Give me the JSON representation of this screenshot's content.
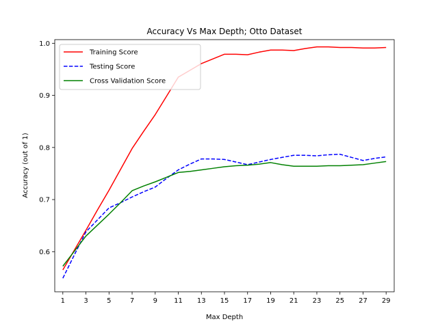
{
  "chart_data": {
    "type": "line",
    "title": "Accuracy Vs Max Depth; Otto Dataset",
    "xlabel": "Max Depth",
    "ylabel": "Accuracy (out of 1)",
    "x": [
      1,
      2,
      3,
      4,
      5,
      6,
      7,
      8,
      9,
      10,
      11,
      12,
      13,
      14,
      15,
      16,
      17,
      18,
      19,
      20,
      21,
      22,
      23,
      24,
      25,
      26,
      27,
      28,
      29
    ],
    "x_ticks": [
      1,
      3,
      5,
      7,
      9,
      11,
      13,
      15,
      17,
      19,
      21,
      23,
      25,
      27,
      29
    ],
    "xlim": [
      0.3,
      29.7
    ],
    "ylim": [
      0.523,
      1.007
    ],
    "y_ticks": [
      0.6,
      0.7,
      0.8,
      0.9,
      1.0
    ],
    "y_tick_labels": [
      "0.6",
      "0.7",
      "0.8",
      "0.9",
      "1.0"
    ],
    "grid": false,
    "legend_position": "top-left",
    "series": [
      {
        "name": "Training Score",
        "color": "#ff0000",
        "style": "solid",
        "values": [
          0.565,
          0.603,
          0.641,
          0.68,
          0.718,
          0.758,
          0.798,
          0.831,
          0.863,
          0.899,
          0.935,
          0.948,
          0.961,
          0.97,
          0.979,
          0.979,
          0.978,
          0.983,
          0.987,
          0.987,
          0.986,
          0.99,
          0.993,
          0.993,
          0.992,
          0.992,
          0.991,
          0.991,
          0.992
        ]
      },
      {
        "name": "Testing Score",
        "color": "#0000ff",
        "style": "dashed",
        "values": [
          0.549,
          0.594,
          0.638,
          0.661,
          0.684,
          0.694,
          0.705,
          0.715,
          0.724,
          0.741,
          0.757,
          0.768,
          0.778,
          0.778,
          0.777,
          0.772,
          0.767,
          0.772,
          0.777,
          0.781,
          0.785,
          0.785,
          0.784,
          0.786,
          0.787,
          0.781,
          0.775,
          0.779,
          0.782
        ]
      },
      {
        "name": "Cross Validation Score",
        "color": "#008000",
        "style": "solid",
        "values": [
          0.572,
          0.601,
          0.63,
          0.651,
          0.672,
          0.694,
          0.717,
          0.726,
          0.734,
          0.743,
          0.752,
          0.754,
          0.757,
          0.76,
          0.763,
          0.765,
          0.766,
          0.768,
          0.771,
          0.767,
          0.764,
          0.764,
          0.764,
          0.765,
          0.765,
          0.766,
          0.767,
          0.77,
          0.773
        ]
      }
    ]
  }
}
